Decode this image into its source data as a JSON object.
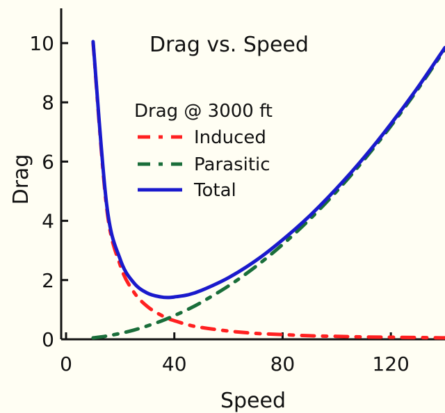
{
  "chart_data": {
    "type": "line",
    "title": "Drag vs. Speed",
    "xlabel": "Speed",
    "ylabel": "Drag",
    "xlim": [
      0,
      140
    ],
    "ylim": [
      0,
      11
    ],
    "xticks": [
      0,
      40,
      80,
      120
    ],
    "yticks": [
      0,
      2,
      4,
      6,
      8,
      10
    ],
    "grid": false,
    "legend": {
      "title": "Drag @ 3000 ft",
      "placement": "upper-left-center"
    },
    "x": [
      10,
      15,
      20,
      25,
      30,
      35,
      38,
      40,
      45,
      50,
      60,
      70,
      80,
      90,
      100,
      110,
      120,
      130,
      140
    ],
    "series": [
      {
        "name": "Induced",
        "color": "#ff2020",
        "dash": "dash-dot",
        "values": [
          10.0,
          4.44,
          2.5,
          1.6,
          1.11,
          0.82,
          0.69,
          0.63,
          0.49,
          0.4,
          0.28,
          0.2,
          0.16,
          0.12,
          0.1,
          0.08,
          0.07,
          0.06,
          0.05
        ]
      },
      {
        "name": "Parasitic",
        "color": "#1a6e3a",
        "dash": "dash-dot",
        "values": [
          0.05,
          0.11,
          0.2,
          0.31,
          0.45,
          0.61,
          0.72,
          0.8,
          1.01,
          1.25,
          1.8,
          2.45,
          3.2,
          4.05,
          5.0,
          6.05,
          7.2,
          8.45,
          9.8
        ]
      },
      {
        "name": "Total",
        "color": "#1a1acc",
        "dash": "solid",
        "values": [
          10.05,
          4.55,
          2.7,
          1.91,
          1.56,
          1.43,
          1.41,
          1.43,
          1.5,
          1.65,
          2.08,
          2.65,
          3.36,
          4.17,
          5.1,
          6.13,
          7.27,
          8.51,
          9.85
        ]
      }
    ]
  }
}
